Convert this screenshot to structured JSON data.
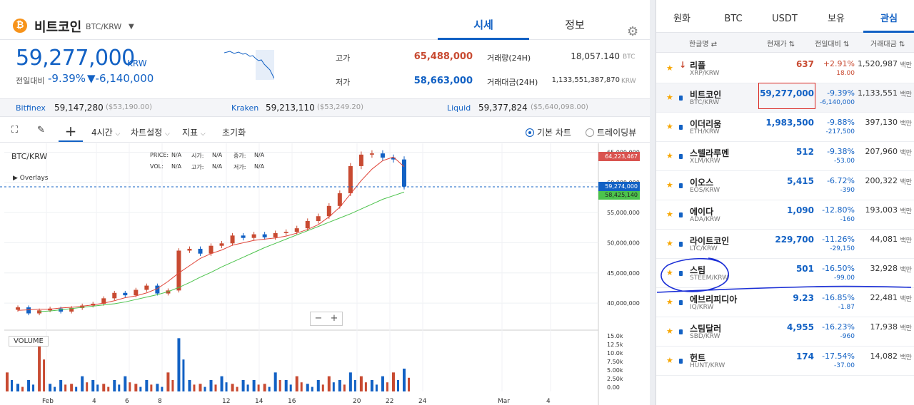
{
  "coin": {
    "logo": "₿",
    "name": "비트코인",
    "pair": "BTC/KRW",
    "dropdown_icon": "triangle-down-icon"
  },
  "header_tabs": [
    {
      "label": "시세",
      "active": true
    },
    {
      "label": "정보",
      "active": false
    }
  ],
  "price": {
    "current": "59,277,000",
    "unit": "KRW",
    "change_label": "전일대비",
    "change_pct": "-9.39%",
    "change_abs": "▼-6,140,000"
  },
  "stats": {
    "high_label": "고가",
    "high": "65,488,000",
    "low_label": "저가",
    "low": "58,663,000",
    "volume_label": "거래량(24H)",
    "volume": "18,057.140",
    "volume_unit": "BTC",
    "amount_label": "거래대금(24H)",
    "amount": "1,133,551,387,870",
    "amount_unit": "KRW"
  },
  "exchanges": [
    {
      "name": "Bitfinex",
      "price": "59,147,280",
      "usd": "($53,190.00)"
    },
    {
      "name": "Kraken",
      "price": "59,213,110",
      "usd": "($53,249.20)"
    },
    {
      "name": "Liquid",
      "price": "59,377,824",
      "usd": "($5,640,098.00)"
    }
  ],
  "toolbar": {
    "interval": "4시간",
    "chart_settings": "차트설정",
    "indicators": "지표",
    "reset": "초기화",
    "basic_chart": "기본 차트",
    "tradingview": "트레이딩뷰"
  },
  "chart_labels": {
    "pair": "BTC/KRW",
    "overlays": "▶ Overlays",
    "volume": "VOLUME",
    "ohlc": {
      "price": "PRICE:",
      "open": "시가:",
      "rise": "증가:",
      "vol": "VOL:",
      "high": "고가:",
      "low": "저가:",
      "na": "N/A"
    },
    "tag_high": "64,223,467",
    "tag_current": "59,274,000",
    "tag_ma": "58,425,140",
    "zoom_minus": "−",
    "zoom_plus": "+"
  },
  "chart_data": {
    "type": "line",
    "y_ticks": [
      "65,000,000",
      "60,000,000",
      "55,000,000",
      "50,000,000",
      "45,000,000",
      "40,000,000"
    ],
    "y_tick_values": [
      65000000,
      60000000,
      55000000,
      50000000,
      45000000,
      40000000
    ],
    "vol_ticks": [
      "15.0k",
      "12.5k",
      "10.0k",
      "7.50k",
      "5.00k",
      "2.50k",
      "0.00"
    ],
    "x_ticks": [
      "Feb",
      "4",
      "6",
      "8",
      "12",
      "14",
      "16",
      "20",
      "22",
      "24",
      "Mar",
      "4"
    ],
    "ylim": [
      36000000,
      66000000
    ],
    "series": [
      {
        "values": [
          38.9,
          39.3,
          38.3,
          38.8,
          39.1,
          38.6,
          39.2,
          39.6,
          39.9,
          40.8,
          41.7,
          41.3,
          42.2,
          42.9,
          41.6,
          42.1,
          48.7,
          49.0,
          48.2,
          49.5,
          49.9,
          51.2,
          50.8,
          51.4,
          50.9,
          51.6,
          51.8,
          52.4,
          53.6,
          54.4,
          56.1,
          58.2,
          62.7,
          64.6,
          64.8,
          64.1,
          63.8,
          59.3
        ]
      },
      {
        "values": [
          38.8,
          38.9,
          39.0,
          39.0,
          39.2,
          39.3,
          39.5,
          39.7,
          40.0,
          40.4,
          40.9,
          41.2,
          41.7,
          42.4,
          43.6,
          45.0,
          46.2,
          47.4,
          48.2,
          48.8,
          49.6,
          50.0,
          50.4,
          50.6,
          50.8,
          51.1,
          51.6,
          52.2,
          53.0,
          54.3,
          55.9,
          58.1,
          60.3,
          62.2,
          63.6,
          64.2,
          62.6
        ]
      },
      {
        "values": [
          38.6,
          38.7,
          38.9,
          39.1,
          39.3,
          39.5,
          39.7,
          39.9,
          40.2,
          40.6,
          41.0,
          41.4,
          41.9,
          42.6,
          43.4,
          44.3,
          45.1,
          46.0,
          46.8,
          47.6,
          48.4,
          49.2,
          49.9,
          50.6,
          51.3,
          52.0,
          52.7,
          53.4,
          54.1,
          54.8,
          55.6,
          56.4,
          57.2,
          57.8,
          58.4
        ]
      }
    ],
    "volume_values": [
      5,
      2,
      3,
      14,
      2,
      3,
      2,
      4,
      3,
      2,
      3,
      4,
      2,
      3,
      2,
      5,
      14,
      3,
      2,
      3,
      4,
      2,
      3,
      3,
      2,
      5,
      3,
      4,
      2,
      3,
      4,
      3,
      5,
      4,
      3,
      4,
      5,
      6
    ]
  },
  "right_tabs": [
    {
      "label": "원화",
      "active": false
    },
    {
      "label": "BTC",
      "active": false
    },
    {
      "label": "USDT",
      "active": false
    },
    {
      "label": "보유",
      "active": false
    },
    {
      "label": "관심",
      "active": true
    }
  ],
  "right_head": {
    "name": "한글명 ⇄",
    "price": "현재가 ⇅",
    "change": "전일대비 ⇅",
    "volume": "거래대금 ⇅"
  },
  "volume_unit": "백만",
  "coins": [
    {
      "name": "리플",
      "symbol": "XRP/KRW",
      "price": "637",
      "pct": "+2.91%",
      "abs": "18.00",
      "vol": "1,520,987",
      "dir": "up"
    },
    {
      "name": "비트코인",
      "symbol": "BTC/KRW",
      "price": "59,277,000",
      "pct": "-9.39%",
      "abs": "-6,140,000",
      "vol": "1,133,551",
      "dir": "dn"
    },
    {
      "name": "이더리움",
      "symbol": "ETH/KRW",
      "price": "1,983,500",
      "pct": "-9.88%",
      "abs": "-217,500",
      "vol": "397,130",
      "dir": "dn"
    },
    {
      "name": "스텔라루멘",
      "symbol": "XLM/KRW",
      "price": "512",
      "pct": "-9.38%",
      "abs": "-53.00",
      "vol": "207,960",
      "dir": "dn"
    },
    {
      "name": "이오스",
      "symbol": "EOS/KRW",
      "price": "5,415",
      "pct": "-6.72%",
      "abs": "-390",
      "vol": "200,322",
      "dir": "dn"
    },
    {
      "name": "에이다",
      "symbol": "ADA/KRW",
      "price": "1,090",
      "pct": "-12.80%",
      "abs": "-160",
      "vol": "193,003",
      "dir": "dn"
    },
    {
      "name": "라이트코인",
      "symbol": "LTC/KRW",
      "price": "229,700",
      "pct": "-11.26%",
      "abs": "-29,150",
      "vol": "44,081",
      "dir": "dn"
    },
    {
      "name": "스팀",
      "symbol": "STEEM/KRW",
      "price": "501",
      "pct": "-16.50%",
      "abs": "-99.00",
      "vol": "32,928",
      "dir": "dn"
    },
    {
      "name": "에브리피디아",
      "symbol": "IQ/KRW",
      "price": "9.23",
      "pct": "-16.85%",
      "abs": "-1.87",
      "vol": "22,481",
      "dir": "dn"
    },
    {
      "name": "스팀달러",
      "symbol": "SBD/KRW",
      "price": "4,955",
      "pct": "-16.23%",
      "abs": "-960",
      "vol": "17,938",
      "dir": "dn"
    },
    {
      "name": "헌트",
      "symbol": "HUNT/KRW",
      "price": "174",
      "pct": "-17.54%",
      "abs": "-37.00",
      "vol": "14,082",
      "dir": "dn"
    }
  ],
  "colors": {
    "up": "#c84a31",
    "down": "#1261c4",
    "ma_short": "#e0463a",
    "ma_long": "#4cc34c",
    "annotation": "#1a2ed6"
  }
}
